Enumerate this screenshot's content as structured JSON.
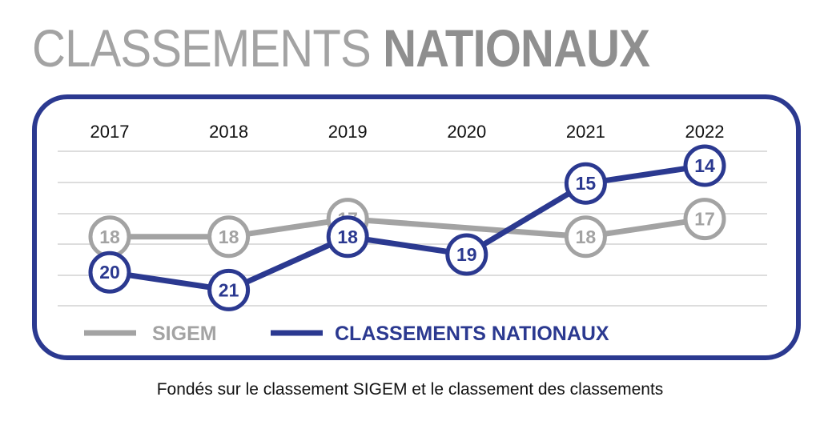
{
  "header": {
    "title_light": "CLASSEMENTS",
    "title_bold": "NATIONAUX"
  },
  "caption": "Fondés sur le classement SIGEM et le classement des classements",
  "colors": {
    "sigem": "#a3a3a3",
    "nationaux": "#2b3990",
    "grid": "#dddddd"
  },
  "chart_data": {
    "type": "line",
    "title": "CLASSEMENTS NATIONAUX",
    "categories": [
      "2017",
      "2018",
      "2019",
      "2020",
      "2021",
      "2022"
    ],
    "series": [
      {
        "name": "SIGEM",
        "values": [
          18,
          18,
          17,
          null,
          18,
          17
        ]
      },
      {
        "name": "CLASSEMENTS NATIONAUX",
        "values": [
          20,
          21,
          18,
          19,
          15,
          14
        ]
      }
    ],
    "y_inverted": true,
    "ylim": [
      13,
      22
    ],
    "grid": true,
    "legend": "bottom-left"
  }
}
